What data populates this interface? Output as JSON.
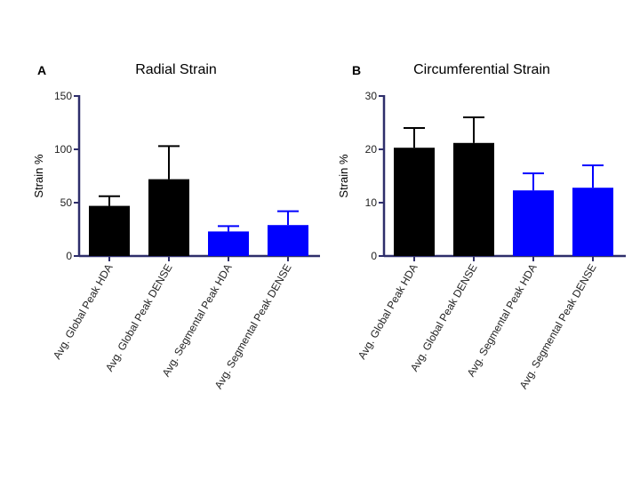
{
  "chart_data": [
    {
      "type": "bar",
      "panel_label": "A",
      "title": "Radial Strain",
      "ylabel": "Strain %",
      "xlabel": "",
      "ylim": [
        0,
        150
      ],
      "yticks": [
        "0",
        "50",
        "100",
        "150"
      ],
      "ytick_values": [
        0,
        50,
        100,
        150
      ],
      "categories": [
        "Avg. Global Peak HDA",
        "Avg. Global Peak DENSE",
        "Avg. Segmental Peak HDA",
        "Avg. Segmental Peak DENSE"
      ],
      "values": [
        47,
        72,
        23,
        29
      ],
      "error_upper": [
        56,
        103,
        28,
        42
      ],
      "colors": [
        "#000000",
        "#000000",
        "#0000ff",
        "#0000ff"
      ]
    },
    {
      "type": "bar",
      "panel_label": "B",
      "title": "Circumferential Strain",
      "ylabel": "Strain %",
      "xlabel": "",
      "ylim": [
        0,
        30
      ],
      "yticks": [
        "0",
        "10",
        "20",
        "30"
      ],
      "ytick_values": [
        0,
        10,
        20,
        30
      ],
      "categories": [
        "Avg. Global Peak HDA",
        "Avg. Global Peak DENSE",
        "Avg. Segmental Peak HDA",
        "Avg. Segmental Peak DENSE"
      ],
      "values": [
        20.3,
        21.2,
        12.3,
        12.8
      ],
      "error_upper": [
        24.0,
        26.0,
        15.5,
        17.0
      ],
      "colors": [
        "#000000",
        "#000000",
        "#0000ff",
        "#0000ff"
      ]
    }
  ]
}
